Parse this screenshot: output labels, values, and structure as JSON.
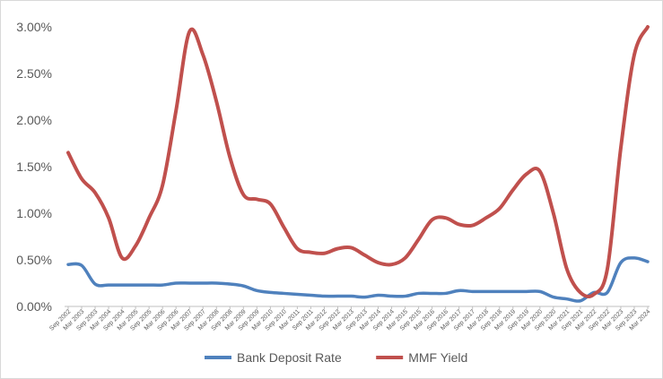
{
  "chart_data": {
    "type": "line",
    "title": "",
    "xlabel": "",
    "ylabel": "",
    "ylim": [
      0,
      3.0
    ],
    "yticks": [
      "0.00%",
      "0.50%",
      "1.00%",
      "1.50%",
      "2.00%",
      "2.50%",
      "3.00%"
    ],
    "grid": "off",
    "legend_position": "bottom",
    "x_ticks": [
      "Sep 2002",
      "Mar 2003",
      "Sep 2003",
      "Mar 2004",
      "Sep 2004",
      "Mar 2005",
      "Sep 2005",
      "Mar 2006",
      "Sep 2006",
      "Mar 2007",
      "Sep 2007",
      "Mar 2008",
      "Sep 2008",
      "Mar 2009",
      "Sep 2009",
      "Mar 2010",
      "Sep 2010",
      "Mar 2011",
      "Sep 2011",
      "Mar 2012",
      "Sep 2012",
      "Mar 2013",
      "Sep 2013",
      "Mar 2014",
      "Sep 2014",
      "Mar 2015",
      "Sep 2015",
      "Mar 2016",
      "Sep 2016",
      "Mar 2017",
      "Sep 2017",
      "Mar 2018",
      "Sep 2018",
      "Mar 2019",
      "Sep 2019",
      "Mar 2020",
      "Sep 2020",
      "Mar 2021",
      "Sep 2021",
      "Mar 2022",
      "Sep 2022",
      "Mar 2023",
      "Sep 2023",
      "Mar 2024"
    ],
    "series": [
      {
        "name": "Bank Deposit Rate",
        "color": "#4f81bd",
        "points": [
          [
            "Sep 2002",
            0.45
          ],
          [
            "Mar 2003",
            0.44
          ],
          [
            "Sep 2003",
            0.24
          ],
          [
            "Mar 2004",
            0.23
          ],
          [
            "Sep 2004",
            0.23
          ],
          [
            "Mar 2005",
            0.23
          ],
          [
            "Sep 2005",
            0.23
          ],
          [
            "Mar 2006",
            0.23
          ],
          [
            "Sep 2006",
            0.25
          ],
          [
            "Mar 2007",
            0.25
          ],
          [
            "Sep 2007",
            0.25
          ],
          [
            "Mar 2008",
            0.25
          ],
          [
            "Sep 2008",
            0.24
          ],
          [
            "Mar 2009",
            0.22
          ],
          [
            "Sep 2009",
            0.17
          ],
          [
            "Mar 2010",
            0.15
          ],
          [
            "Sep 2010",
            0.14
          ],
          [
            "Mar 2011",
            0.13
          ],
          [
            "Sep 2011",
            0.12
          ],
          [
            "Mar 2012",
            0.11
          ],
          [
            "Sep 2012",
            0.11
          ],
          [
            "Mar 2013",
            0.11
          ],
          [
            "Sep 2013",
            0.1
          ],
          [
            "Mar 2014",
            0.12
          ],
          [
            "Sep 2014",
            0.11
          ],
          [
            "Mar 2015",
            0.11
          ],
          [
            "Sep 2015",
            0.14
          ],
          [
            "Mar 2016",
            0.14
          ],
          [
            "Sep 2016",
            0.14
          ],
          [
            "Mar 2017",
            0.17
          ],
          [
            "Sep 2017",
            0.16
          ],
          [
            "Mar 2018",
            0.16
          ],
          [
            "Sep 2018",
            0.16
          ],
          [
            "Mar 2019",
            0.16
          ],
          [
            "Sep 2019",
            0.16
          ],
          [
            "Mar 2020",
            0.16
          ],
          [
            "Sep 2020",
            0.1
          ],
          [
            "Mar 2021",
            0.08
          ],
          [
            "Sep 2021",
            0.06
          ],
          [
            "Mar 2022",
            0.15
          ],
          [
            "Sep 2022",
            0.15
          ],
          [
            "Mar 2023",
            0.47
          ],
          [
            "Sep 2023",
            0.52
          ],
          [
            "Mar 2024",
            0.48
          ]
        ]
      },
      {
        "name": "MMF Yield",
        "color": "#c0504d",
        "points": [
          [
            "Sep 2002",
            1.65
          ],
          [
            "Mar 2003",
            1.37
          ],
          [
            "Sep 2003",
            1.22
          ],
          [
            "Mar 2004",
            0.95
          ],
          [
            "Sep 2004",
            0.52
          ],
          [
            "Mar 2005",
            0.65
          ],
          [
            "Sep 2005",
            0.95
          ],
          [
            "Mar 2006",
            1.3
          ],
          [
            "Sep 2006",
            2.1
          ],
          [
            "Mar 2007",
            2.95
          ],
          [
            "Sep 2007",
            2.7
          ],
          [
            "Mar 2008",
            2.2
          ],
          [
            "Sep 2008",
            1.6
          ],
          [
            "Mar 2009",
            1.2
          ],
          [
            "Sep 2009",
            1.15
          ],
          [
            "Mar 2010",
            1.1
          ],
          [
            "Sep 2010",
            0.85
          ],
          [
            "Mar 2011",
            0.62
          ],
          [
            "Sep 2011",
            0.58
          ],
          [
            "Mar 2012",
            0.57
          ],
          [
            "Sep 2012",
            0.62
          ],
          [
            "Mar 2013",
            0.63
          ],
          [
            "Sep 2013",
            0.55
          ],
          [
            "Mar 2014",
            0.47
          ],
          [
            "Sep 2014",
            0.45
          ],
          [
            "Mar 2015",
            0.52
          ],
          [
            "Sep 2015",
            0.72
          ],
          [
            "Mar 2016",
            0.93
          ],
          [
            "Sep 2016",
            0.95
          ],
          [
            "Mar 2017",
            0.88
          ],
          [
            "Sep 2017",
            0.87
          ],
          [
            "Mar 2018",
            0.95
          ],
          [
            "Sep 2018",
            1.05
          ],
          [
            "Mar 2019",
            1.25
          ],
          [
            "Sep 2019",
            1.42
          ],
          [
            "Mar 2020",
            1.45
          ],
          [
            "Sep 2020",
            1.0
          ],
          [
            "Mar 2021",
            0.4
          ],
          [
            "Sep 2021",
            0.15
          ],
          [
            "Mar 2022",
            0.13
          ],
          [
            "Sep 2022",
            0.4
          ],
          [
            "Mar 2023",
            1.7
          ],
          [
            "Sep 2023",
            2.7
          ],
          [
            "Mar 2024",
            3.0
          ]
        ]
      }
    ]
  }
}
